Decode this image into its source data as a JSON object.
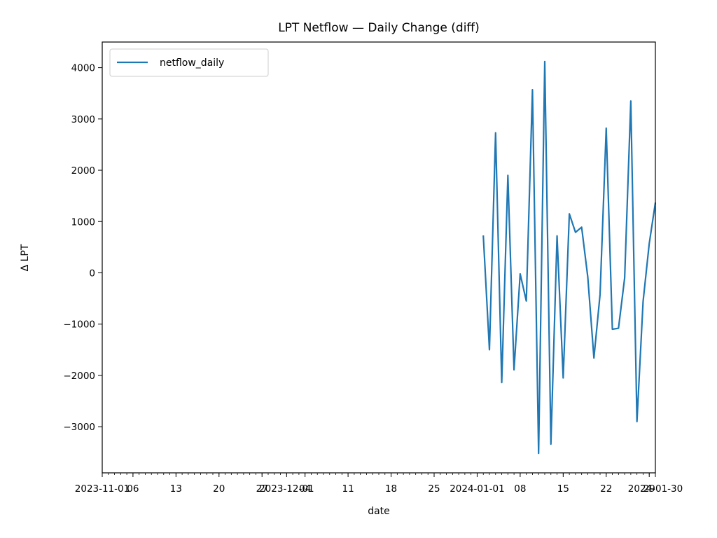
{
  "chart_data": {
    "type": "line",
    "title": "LPT Netflow — Daily Change (diff)",
    "xlabel": "date",
    "ylabel": "Δ LPT",
    "xlim": [
      "2023-11-01",
      "2024-01-30"
    ],
    "ylim": [
      -3900,
      4500
    ],
    "grid": false,
    "legend_position": "top-left",
    "y_ticks": [
      -3000,
      -2000,
      -1000,
      0,
      1000,
      2000,
      3000,
      4000
    ],
    "y_tick_labels": [
      "−3000",
      "−2000",
      "−1000",
      "0",
      "1000",
      "2000",
      "3000",
      "4000"
    ],
    "x_ticks": [
      {
        "date": "2023-11-01",
        "label": "2023-11-01"
      },
      {
        "date": "2023-11-06",
        "label": "06"
      },
      {
        "date": "2023-11-13",
        "label": "13"
      },
      {
        "date": "2023-11-20",
        "label": "20"
      },
      {
        "date": "2023-11-27",
        "label": "27"
      },
      {
        "date": "2023-12-01",
        "label": "2023-12-01"
      },
      {
        "date": "2023-12-04",
        "label": "04"
      },
      {
        "date": "2023-12-11",
        "label": "11"
      },
      {
        "date": "2023-12-18",
        "label": "18"
      },
      {
        "date": "2023-12-25",
        "label": "25"
      },
      {
        "date": "2024-01-01",
        "label": "2024-01-01"
      },
      {
        "date": "2024-01-08",
        "label": "08"
      },
      {
        "date": "2024-01-15",
        "label": "15"
      },
      {
        "date": "2024-01-22",
        "label": "22"
      },
      {
        "date": "2024-01-29",
        "label": "29"
      },
      {
        "date": "2024-01-30",
        "label": "2024-01-30"
      }
    ],
    "series": [
      {
        "name": "netflow_daily",
        "color": "#1f77b4",
        "x": [
          "2024-01-02",
          "2024-01-03",
          "2024-01-04",
          "2024-01-05",
          "2024-01-06",
          "2024-01-07",
          "2024-01-08",
          "2024-01-09",
          "2024-01-10",
          "2024-01-11",
          "2024-01-12",
          "2024-01-13",
          "2024-01-14",
          "2024-01-15",
          "2024-01-16",
          "2024-01-17",
          "2024-01-18",
          "2024-01-19",
          "2024-01-20",
          "2024-01-21",
          "2024-01-22",
          "2024-01-23",
          "2024-01-24",
          "2024-01-25",
          "2024-01-26",
          "2024-01-27",
          "2024-01-28",
          "2024-01-29",
          "2024-01-30"
        ],
        "values": [
          730,
          -1500,
          2730,
          -2140,
          1900,
          -1890,
          -20,
          -550,
          3570,
          -3520,
          4120,
          -3340,
          720,
          -2050,
          1150,
          790,
          890,
          -80,
          -1660,
          -420,
          2820,
          -1100,
          -1080,
          -100,
          3350,
          -2900,
          -560,
          570,
          1370
        ]
      }
    ]
  }
}
